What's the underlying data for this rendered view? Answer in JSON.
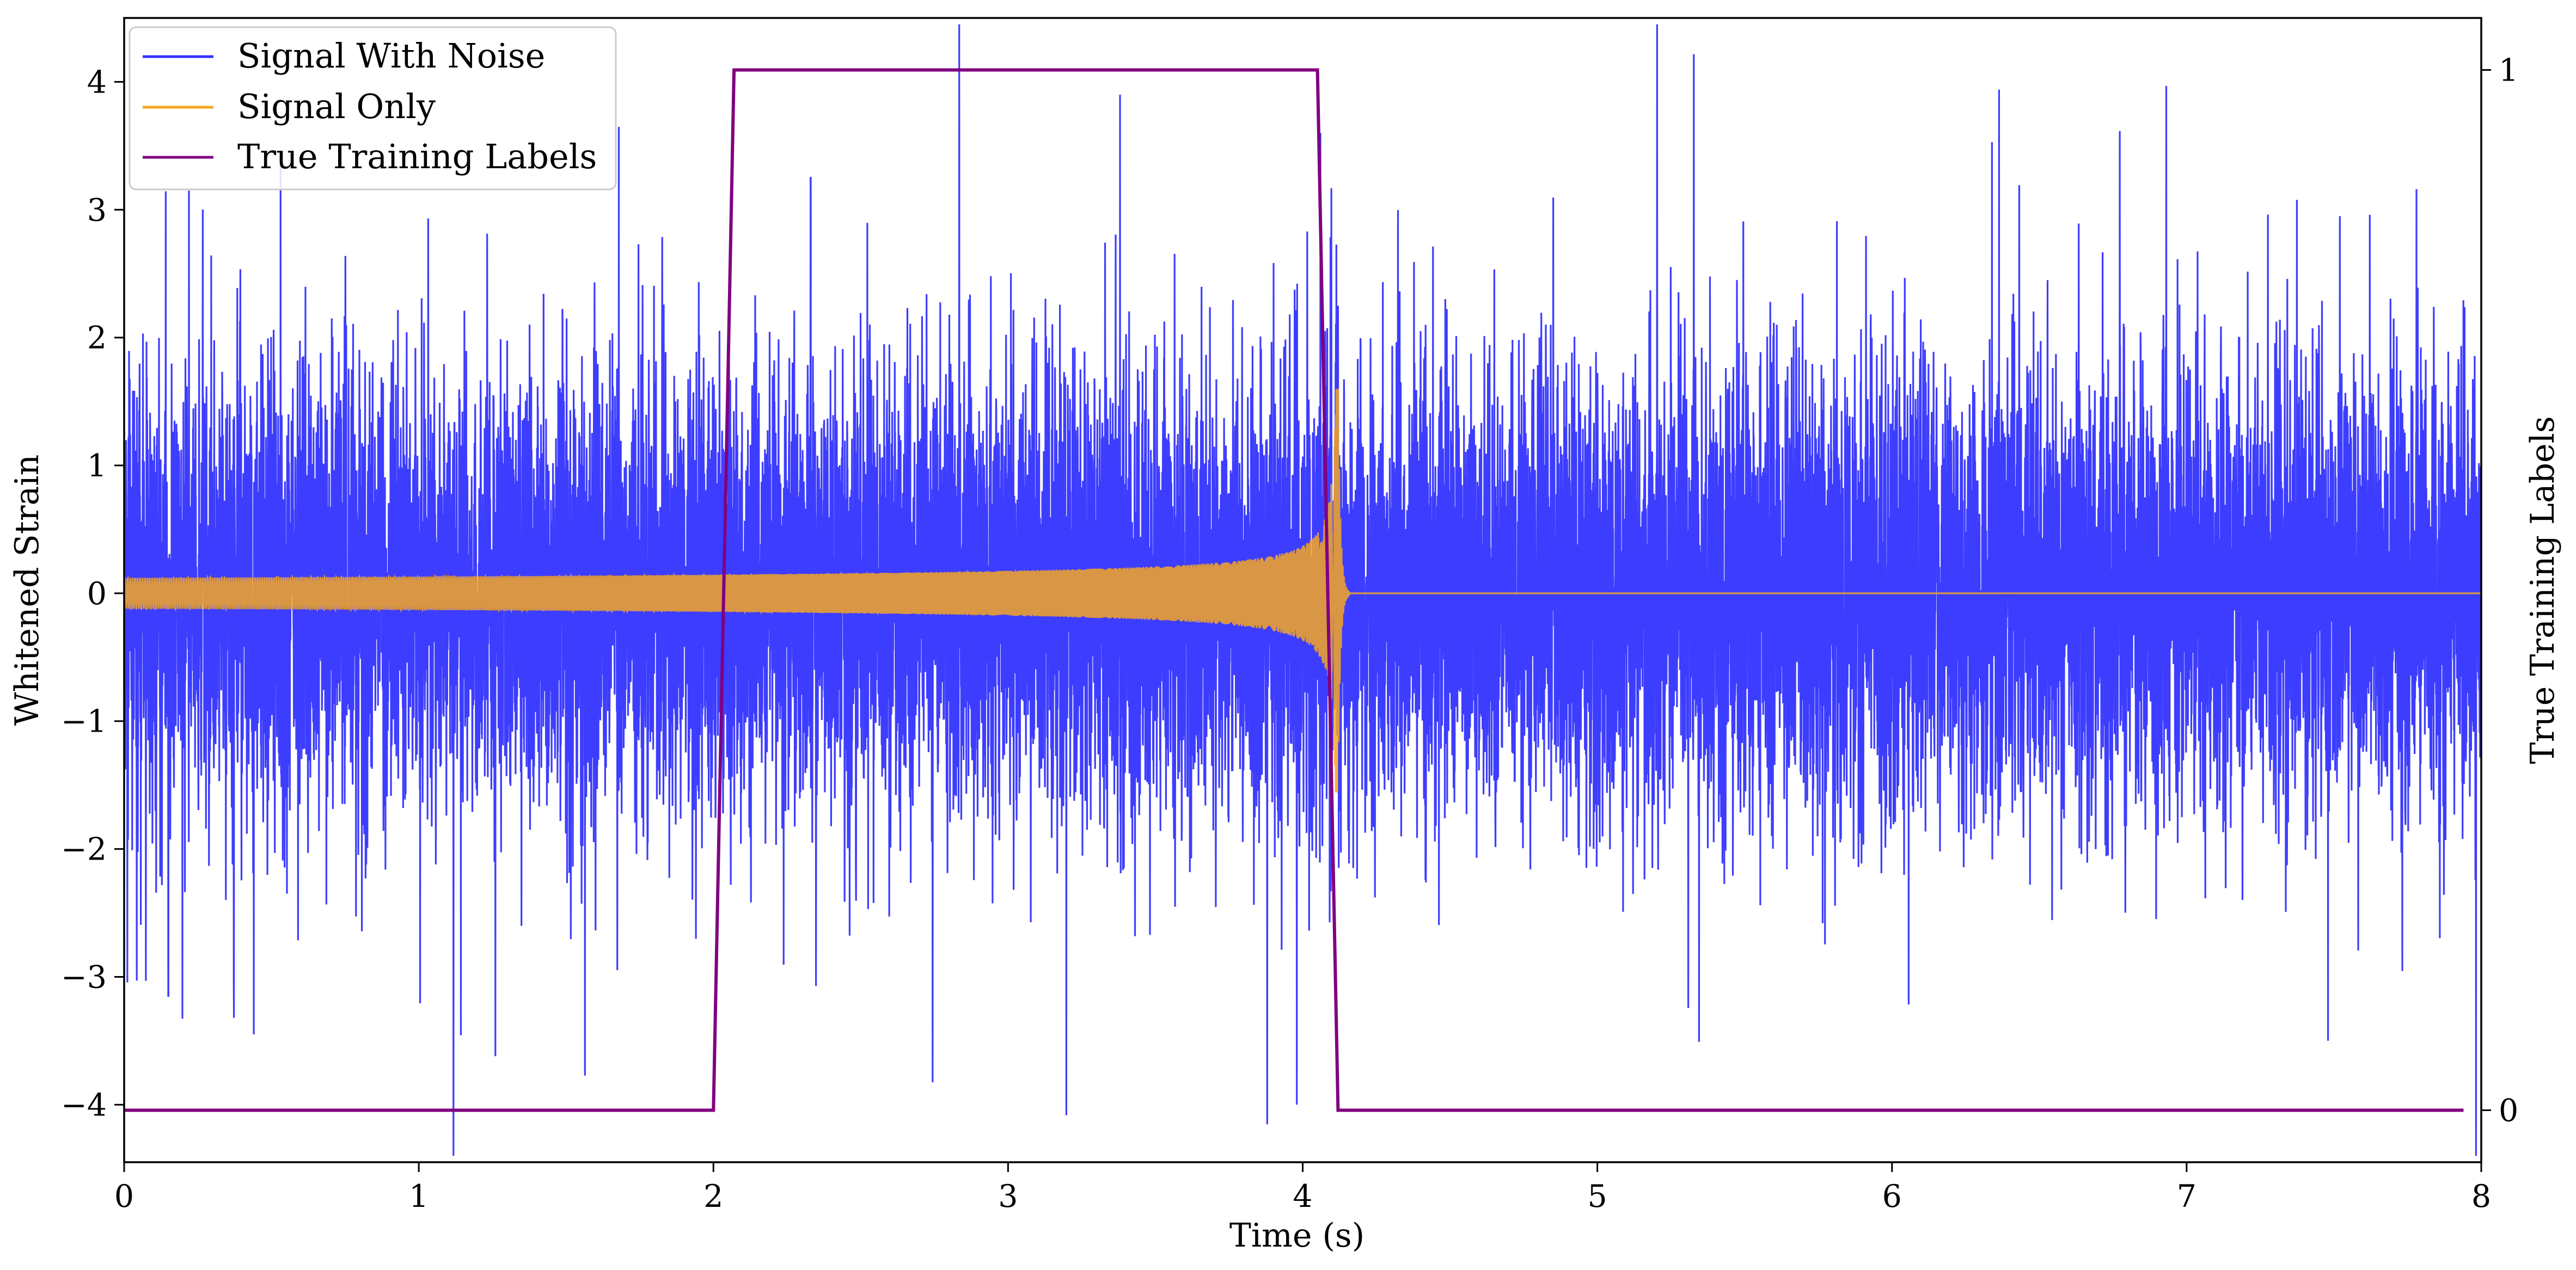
{
  "chart_data": {
    "type": "line",
    "title": "",
    "xlabel": "Time (s)",
    "ylabel": "Whitened Strain",
    "ylabel_right": "True Training Labels",
    "xlim": [
      0,
      8
    ],
    "ylim": [
      -4.45,
      4.5
    ],
    "ylim_right": [
      -0.05,
      1.05
    ],
    "x_ticks": [
      0,
      1,
      2,
      3,
      4,
      5,
      6,
      7,
      8
    ],
    "x_tick_labels": [
      "0",
      "1",
      "2",
      "3",
      "4",
      "5",
      "6",
      "7",
      "8"
    ],
    "y_ticks": [
      -4,
      -3,
      -2,
      -1,
      0,
      1,
      2,
      3,
      4
    ],
    "y_tick_labels": [
      "−4",
      "−3",
      "−2",
      "−1",
      "0",
      "1",
      "2",
      "3",
      "4"
    ],
    "y_right_ticks": [
      0,
      1
    ],
    "y_right_tick_labels": [
      "0",
      "1"
    ],
    "grid": false,
    "legend_position": "top-left",
    "series": [
      {
        "name": "Signal With Noise",
        "color": "#3333ff",
        "axis": "left",
        "description_noise_std": 0.85,
        "peak_values": [
          [
            0.22,
            3.15
          ],
          [
            0.15,
            -3.15
          ],
          [
            0.44,
            -3.45
          ],
          [
            1.26,
            -3.62
          ],
          [
            2.33,
            3.25
          ],
          [
            3.38,
            3.9
          ],
          [
            3.98,
            -4.0
          ],
          [
            4.06,
            3.6
          ],
          [
            7.48,
            -3.5
          ],
          [
            7.52,
            2.95
          ]
        ]
      },
      {
        "name": "Signal Only",
        "color": "#f5a623",
        "axis": "left",
        "chirp_start": 0,
        "chirp_end": 4.12,
        "amplitude_start": 0.12,
        "amplitude_peak": 1.6,
        "post_merger_value": 0
      },
      {
        "name": "True Training Labels",
        "color": "#800080",
        "axis": "right",
        "x": [
          0,
          2.0,
          2.07,
          4.05,
          4.12,
          7.94
        ],
        "y": [
          0,
          0,
          1,
          1,
          0,
          0
        ]
      }
    ]
  }
}
